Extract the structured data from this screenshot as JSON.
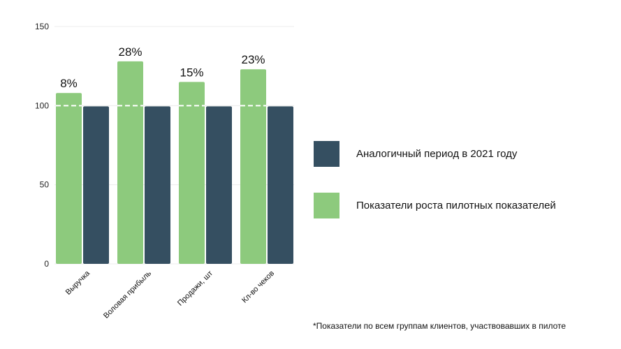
{
  "chart_data": {
    "type": "bar",
    "categories": [
      "Выручка",
      "Воловая прибыль",
      "Продажи, шт",
      "Кл-во чеков"
    ],
    "series": [
      {
        "name": "Показатели роста пилотных показателей",
        "color": "#8dca7d",
        "values": [
          108,
          128,
          115,
          123
        ],
        "labels": [
          "8%",
          "28%",
          "15%",
          "23%"
        ]
      },
      {
        "name": "Аналогичный период в 2021 году",
        "color": "#354f61",
        "values": [
          100,
          100,
          100,
          100
        ]
      }
    ],
    "yticks": [
      "0",
      "50",
      "100",
      "150"
    ],
    "ylim": [
      0,
      150
    ],
    "reference_line": 100,
    "grid": true,
    "legend_position": "right",
    "footnote": "*Показатели по всем группам клиентов, участвовавших в пилоте"
  }
}
